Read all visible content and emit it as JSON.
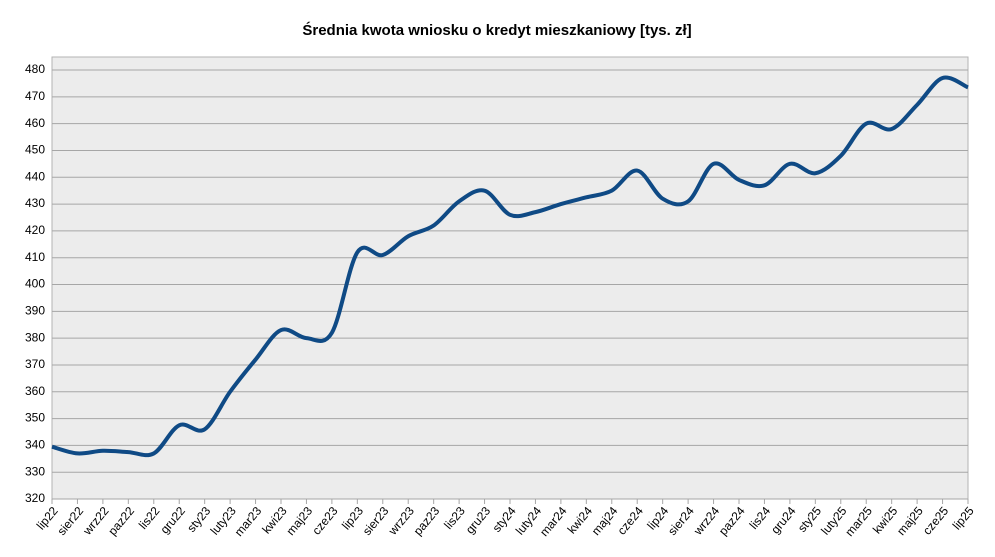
{
  "chart_data": {
    "type": "line",
    "title": "Średnia kwota wniosku o kredyt mieszkaniowy [tys. zł]",
    "categories": [
      "lip22",
      "sier22",
      "wrz22",
      "paz22",
      "lis22",
      "gru22",
      "sty23",
      "luty23",
      "mar23",
      "kwi23",
      "maj23",
      "cze23",
      "lip23",
      "sier23",
      "wrz23",
      "paz23",
      "lis23",
      "gru23",
      "sty24",
      "luty24",
      "mar24",
      "kwi24",
      "maj24",
      "cze24",
      "lip24",
      "sier24",
      "wrz24",
      "paz24",
      "lis24",
      "gru24",
      "sty25",
      "luty25",
      "mar25",
      "kwi25",
      "maj25",
      "cze25",
      "lip25"
    ],
    "series": [
      {
        "color": "#0f4a85",
        "values": [
          339.5,
          337,
          338,
          337.5,
          337,
          347.5,
          346,
          360,
          372,
          383,
          380,
          382,
          412,
          411,
          418,
          422,
          431,
          435,
          426,
          427,
          430,
          432.5,
          435,
          442.5,
          432,
          431,
          445,
          439,
          437,
          445,
          441.5,
          448,
          460,
          458,
          467,
          477,
          473.5
        ]
      }
    ],
    "ylim": [
      320,
      480
    ],
    "yticks": [
      320,
      330,
      340,
      350,
      360,
      370,
      380,
      390,
      400,
      410,
      420,
      430,
      440,
      450,
      460,
      470,
      480
    ],
    "grid": true
  }
}
